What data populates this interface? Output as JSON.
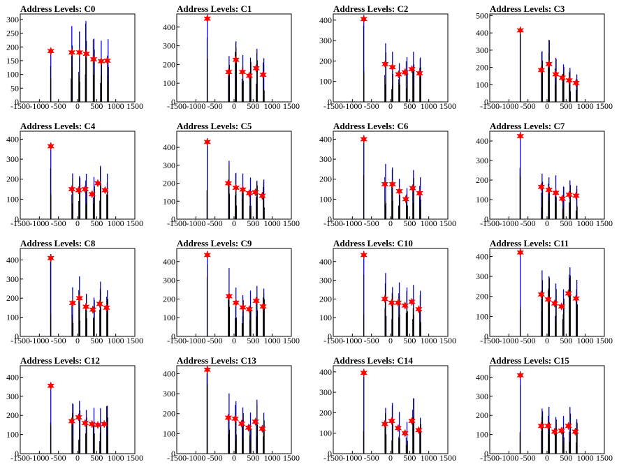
{
  "x_ticks": [
    "-1500",
    "-1000",
    "-500",
    "0",
    "500",
    "1000",
    "1500"
  ],
  "x_range": [
    -1500,
    1500
  ],
  "colors": {
    "bars": "#0000ff",
    "spikes": "#000000",
    "markers": "#ff0000"
  },
  "chart_data": [
    {
      "type": "bar",
      "title": "Address Levels: C0",
      "ylim": [
        0,
        320
      ],
      "yticks": [
        "0",
        "50",
        "100",
        "150",
        "200",
        "250",
        "300"
      ],
      "peaks": [
        -700,
        -150,
        50,
        220,
        430,
        620,
        800
      ],
      "markers": [
        {
          "x": -700,
          "y": 185
        },
        {
          "x": -150,
          "y": 180
        },
        {
          "x": 50,
          "y": 180
        },
        {
          "x": 230,
          "y": 175
        },
        {
          "x": 420,
          "y": 155
        },
        {
          "x": 620,
          "y": 148
        },
        {
          "x": 780,
          "y": 150
        }
      ]
    },
    {
      "type": "bar",
      "title": "Address Levels: C1",
      "ylim": [
        0,
        470
      ],
      "yticks": [
        "0",
        "100",
        "200",
        "300",
        "400"
      ],
      "peaks": [
        -700,
        -130,
        50,
        230,
        430,
        600,
        780
      ],
      "markers": [
        {
          "x": -700,
          "y": 445
        },
        {
          "x": -140,
          "y": 160
        },
        {
          "x": 50,
          "y": 225
        },
        {
          "x": 220,
          "y": 160
        },
        {
          "x": 400,
          "y": 140
        },
        {
          "x": 580,
          "y": 180
        },
        {
          "x": 760,
          "y": 145
        }
      ]
    },
    {
      "type": "bar",
      "title": "Address Levels: C2",
      "ylim": [
        0,
        430
      ],
      "yticks": [
        "0",
        "100",
        "200",
        "300",
        "400"
      ],
      "peaks": [
        -700,
        -130,
        50,
        230,
        430,
        600,
        780
      ],
      "markers": [
        {
          "x": -700,
          "y": 405
        },
        {
          "x": -140,
          "y": 185
        },
        {
          "x": 50,
          "y": 170
        },
        {
          "x": 210,
          "y": 135
        },
        {
          "x": 380,
          "y": 145
        },
        {
          "x": 560,
          "y": 160
        },
        {
          "x": 760,
          "y": 140
        }
      ]
    },
    {
      "type": "bar",
      "title": "Address Levels: C3",
      "ylim": [
        0,
        510
      ],
      "yticks": [
        "0",
        "100",
        "200",
        "300",
        "400",
        "500"
      ],
      "peaks": [
        -700,
        -130,
        50,
        230,
        430,
        600,
        780
      ],
      "markers": [
        {
          "x": -700,
          "y": 415
        },
        {
          "x": -150,
          "y": 185
        },
        {
          "x": 50,
          "y": 220
        },
        {
          "x": 230,
          "y": 160
        },
        {
          "x": 400,
          "y": 140
        },
        {
          "x": 580,
          "y": 125
        },
        {
          "x": 760,
          "y": 110
        }
      ]
    },
    {
      "type": "bar",
      "title": "Address Levels: C4",
      "ylim": [
        0,
        440
      ],
      "yticks": [
        "0",
        "100",
        "200",
        "300",
        "400"
      ],
      "peaks": [
        -700,
        -130,
        50,
        230,
        430,
        600,
        780
      ],
      "markers": [
        {
          "x": -700,
          "y": 365
        },
        {
          "x": -150,
          "y": 150
        },
        {
          "x": 30,
          "y": 145
        },
        {
          "x": 200,
          "y": 150
        },
        {
          "x": 380,
          "y": 125
        },
        {
          "x": 530,
          "y": 180
        },
        {
          "x": 720,
          "y": 145
        }
      ]
    },
    {
      "type": "bar",
      "title": "Address Levels: C5",
      "ylim": [
        0,
        490
      ],
      "yticks": [
        "0",
        "100",
        "200",
        "300",
        "400"
      ],
      "peaks": [
        -700,
        -130,
        50,
        230,
        430,
        600,
        780
      ],
      "markers": [
        {
          "x": -700,
          "y": 430
        },
        {
          "x": -150,
          "y": 200
        },
        {
          "x": 50,
          "y": 175
        },
        {
          "x": 230,
          "y": 165
        },
        {
          "x": 400,
          "y": 145
        },
        {
          "x": 560,
          "y": 150
        },
        {
          "x": 740,
          "y": 130
        }
      ]
    },
    {
      "type": "bar",
      "title": "Address Levels: C6",
      "ylim": [
        0,
        440
      ],
      "yticks": [
        "0",
        "100",
        "200",
        "300",
        "400"
      ],
      "peaks": [
        -700,
        -130,
        50,
        230,
        430,
        600,
        780
      ],
      "markers": [
        {
          "x": -700,
          "y": 400
        },
        {
          "x": -150,
          "y": 175
        },
        {
          "x": 50,
          "y": 175
        },
        {
          "x": 230,
          "y": 140
        },
        {
          "x": 400,
          "y": 100
        },
        {
          "x": 580,
          "y": 155
        },
        {
          "x": 760,
          "y": 130
        }
      ]
    },
    {
      "type": "bar",
      "title": "Address Levels: C7",
      "ylim": [
        0,
        450
      ],
      "yticks": [
        "0",
        "100",
        "200",
        "300",
        "400"
      ],
      "peaks": [
        -700,
        -130,
        50,
        230,
        430,
        600,
        780
      ],
      "markers": [
        {
          "x": -700,
          "y": 425
        },
        {
          "x": -150,
          "y": 165
        },
        {
          "x": 50,
          "y": 150
        },
        {
          "x": 230,
          "y": 135
        },
        {
          "x": 400,
          "y": 105
        },
        {
          "x": 580,
          "y": 125
        },
        {
          "x": 760,
          "y": 120
        }
      ]
    },
    {
      "type": "bar",
      "title": "Address Levels: C8",
      "ylim": [
        0,
        460
      ],
      "yticks": [
        "0",
        "100",
        "200",
        "300",
        "400"
      ],
      "peaks": [
        -700,
        -130,
        50,
        230,
        430,
        600,
        780
      ],
      "markers": [
        {
          "x": -700,
          "y": 410
        },
        {
          "x": -130,
          "y": 175
        },
        {
          "x": 50,
          "y": 200
        },
        {
          "x": 220,
          "y": 155
        },
        {
          "x": 400,
          "y": 140
        },
        {
          "x": 580,
          "y": 170
        },
        {
          "x": 760,
          "y": 150
        }
      ]
    },
    {
      "type": "bar",
      "title": "Address Levels: C9",
      "ylim": [
        0,
        470
      ],
      "yticks": [
        "0",
        "100",
        "200",
        "300",
        "400"
      ],
      "peaks": [
        -700,
        -130,
        50,
        230,
        430,
        600,
        780
      ],
      "markers": [
        {
          "x": -700,
          "y": 435
        },
        {
          "x": -130,
          "y": 215
        },
        {
          "x": 50,
          "y": 180
        },
        {
          "x": 230,
          "y": 155
        },
        {
          "x": 400,
          "y": 145
        },
        {
          "x": 580,
          "y": 190
        },
        {
          "x": 760,
          "y": 160
        }
      ]
    },
    {
      "type": "bar",
      "title": "Address Levels: C10",
      "ylim": [
        0,
        470
      ],
      "yticks": [
        "0",
        "100",
        "200",
        "300",
        "400"
      ],
      "peaks": [
        -700,
        -130,
        50,
        230,
        430,
        600,
        780
      ],
      "markers": [
        {
          "x": -700,
          "y": 435
        },
        {
          "x": -150,
          "y": 200
        },
        {
          "x": 30,
          "y": 180
        },
        {
          "x": 200,
          "y": 180
        },
        {
          "x": 380,
          "y": 165
        },
        {
          "x": 560,
          "y": 185
        },
        {
          "x": 740,
          "y": 145
        }
      ]
    },
    {
      "type": "bar",
      "title": "Address Levels: C11",
      "ylim": [
        0,
        440
      ],
      "yticks": [
        "0",
        "100",
        "200",
        "300",
        "400"
      ],
      "peaks": [
        -700,
        -130,
        50,
        230,
        430,
        600,
        780
      ],
      "markers": [
        {
          "x": -700,
          "y": 420
        },
        {
          "x": -150,
          "y": 210
        },
        {
          "x": 30,
          "y": 185
        },
        {
          "x": 200,
          "y": 165
        },
        {
          "x": 380,
          "y": 150
        },
        {
          "x": 560,
          "y": 215
        },
        {
          "x": 760,
          "y": 190
        }
      ]
    },
    {
      "type": "bar",
      "title": "Address Levels: C12",
      "ylim": [
        0,
        460
      ],
      "yticks": [
        "0",
        "100",
        "200",
        "300",
        "400"
      ],
      "peaks": [
        -700,
        -130,
        50,
        230,
        430,
        600,
        780
      ],
      "markers": [
        {
          "x": -700,
          "y": 355
        },
        {
          "x": -150,
          "y": 170
        },
        {
          "x": 30,
          "y": 190
        },
        {
          "x": 200,
          "y": 160
        },
        {
          "x": 380,
          "y": 155
        },
        {
          "x": 530,
          "y": 150
        },
        {
          "x": 700,
          "y": 155
        }
      ]
    },
    {
      "type": "bar",
      "title": "Address Levels: C13",
      "ylim": [
        0,
        440
      ],
      "yticks": [
        "0",
        "100",
        "200",
        "300",
        "400"
      ],
      "peaks": [
        -700,
        -130,
        50,
        230,
        430,
        600,
        780
      ],
      "markers": [
        {
          "x": -700,
          "y": 420
        },
        {
          "x": -150,
          "y": 180
        },
        {
          "x": 30,
          "y": 175
        },
        {
          "x": 200,
          "y": 150
        },
        {
          "x": 380,
          "y": 130
        },
        {
          "x": 560,
          "y": 160
        },
        {
          "x": 740,
          "y": 125
        }
      ]
    },
    {
      "type": "bar",
      "title": "Address Levels: C14",
      "ylim": [
        0,
        430
      ],
      "yticks": [
        "0",
        "100",
        "200",
        "300",
        "400"
      ],
      "peaks": [
        -700,
        -130,
        50,
        230,
        430,
        600,
        780
      ],
      "markers": [
        {
          "x": -700,
          "y": 395
        },
        {
          "x": -150,
          "y": 145
        },
        {
          "x": 30,
          "y": 160
        },
        {
          "x": 200,
          "y": 125
        },
        {
          "x": 380,
          "y": 100
        },
        {
          "x": 560,
          "y": 160
        },
        {
          "x": 740,
          "y": 115
        }
      ]
    },
    {
      "type": "bar",
      "title": "Address Levels: C15",
      "ylim": [
        0,
        460
      ],
      "yticks": [
        "0",
        "100",
        "200",
        "300",
        "400"
      ],
      "peaks": [
        -700,
        -130,
        50,
        230,
        430,
        600,
        780
      ],
      "markers": [
        {
          "x": -700,
          "y": 410
        },
        {
          "x": -150,
          "y": 145
        },
        {
          "x": 30,
          "y": 145
        },
        {
          "x": 200,
          "y": 115
        },
        {
          "x": 380,
          "y": 120
        },
        {
          "x": 560,
          "y": 145
        },
        {
          "x": 740,
          "y": 115
        }
      ]
    }
  ]
}
